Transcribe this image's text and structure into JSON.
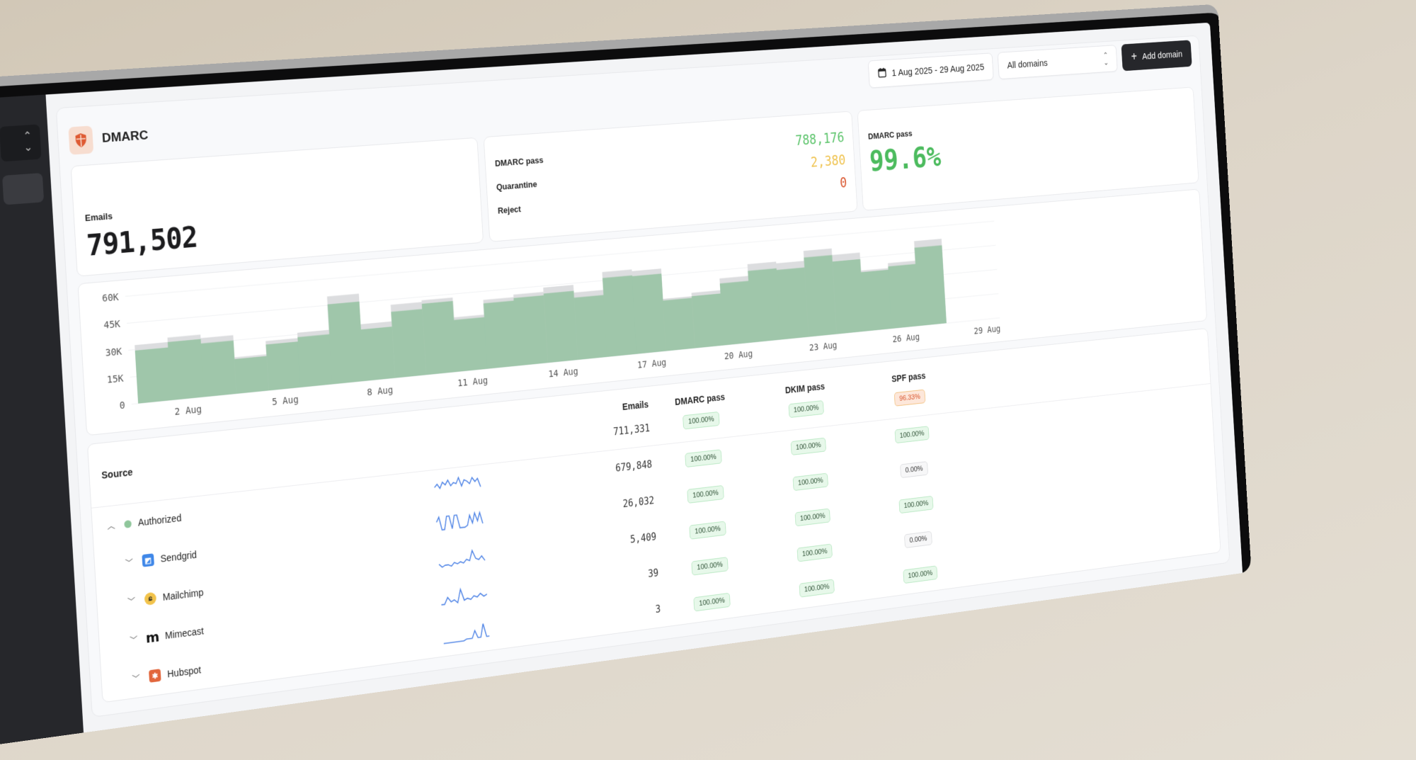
{
  "header": {
    "title": "DMARC",
    "date_range": "1 Aug 2025 - 29 Aug 2025",
    "domain_select": "All domains",
    "add_domain": "Add domain"
  },
  "stats": {
    "emails_label": "Emails",
    "emails_value": "791,502",
    "breakdown": [
      {
        "label": "DMARC pass",
        "value": "788,176",
        "color": "#5cc46b"
      },
      {
        "label": "Quarantine",
        "value": "2,380",
        "color": "#efc24d"
      },
      {
        "label": "Reject",
        "value": "0",
        "color": "#d9532b"
      }
    ],
    "pass_label": "DMARC pass",
    "pass_value": "99.6%"
  },
  "chart_data": {
    "type": "bar",
    "stacked": "overlay",
    "x": [
      "1 Aug",
      "2 Aug",
      "3 Aug",
      "4 Aug",
      "5 Aug",
      "6 Aug",
      "7 Aug",
      "8 Aug",
      "9 Aug",
      "10 Aug",
      "11 Aug",
      "12 Aug",
      "13 Aug",
      "14 Aug",
      "15 Aug",
      "16 Aug",
      "17 Aug",
      "18 Aug",
      "19 Aug",
      "20 Aug",
      "21 Aug",
      "22 Aug",
      "23 Aug",
      "24 Aug",
      "25 Aug",
      "26 Aug",
      "27 Aug"
    ],
    "series": [
      {
        "values": [
          32500,
          35000,
          33000,
          20500,
          28000,
          31000,
          50000,
          32500,
          42000,
          43000,
          31500,
          40000,
          41500,
          44000,
          39500,
          50000,
          49000,
          31000,
          33000,
          40000,
          47000,
          46000,
          52000,
          48000,
          37000,
          40000,
          52000
        ],
        "color": "#dcdddf"
      },
      {
        "values": [
          29500,
          32500,
          30000,
          19500,
          26000,
          28500,
          45500,
          29500,
          38000,
          41000,
          30000,
          38000,
          39500,
          40500,
          36500,
          46500,
          46000,
          30000,
          31000,
          37000,
          43000,
          42000,
          48000,
          44000,
          36000,
          38000,
          48000
        ],
        "color": "#9fc6aa"
      }
    ],
    "yticks": [
      "0",
      "15K",
      "30K",
      "45K",
      "60K"
    ],
    "ylim": [
      0,
      62000
    ],
    "xticks": [
      "2 Aug",
      "5 Aug",
      "8 Aug",
      "11 Aug",
      "14 Aug",
      "17 Aug",
      "20 Aug",
      "23 Aug",
      "26 Aug",
      "29 Aug"
    ],
    "grid": true
  },
  "table": {
    "columns": [
      "Source",
      "Emails",
      "DMARC pass",
      "DKIM pass",
      "SPF pass"
    ],
    "total": {
      "emails": "711,331",
      "dmarc": "100.00%",
      "dkim": "100.00%",
      "spf": "96.33%",
      "spf_status": "warn"
    },
    "rows": [
      {
        "name": "Authorized",
        "icon": "green-dot-icon",
        "expanded": true,
        "emails": "679,848",
        "dmarc": "100.00%",
        "dkim": "100.00%",
        "spf": "100.00%",
        "spf_status": "ok",
        "spark": [
          5,
          7,
          4,
          8,
          6,
          9,
          5,
          7,
          6,
          10,
          4,
          8,
          7,
          5,
          9,
          6,
          8,
          2
        ]
      },
      {
        "name": "Sendgrid",
        "icon": "sendgrid-icon",
        "emails": "26,032",
        "dmarc": "100.00%",
        "dkim": "100.00%",
        "spf": "0.00%",
        "spf_status": "zero",
        "spark": [
          6,
          9,
          1,
          1,
          9,
          9,
          1,
          9,
          9,
          1,
          1,
          1,
          2,
          8,
          3,
          9,
          4,
          9,
          2
        ]
      },
      {
        "name": "Mailchimp",
        "icon": "mailchimp-icon",
        "emails": "5,409",
        "dmarc": "100.00%",
        "dkim": "100.00%",
        "spf": "100.00%",
        "spf_status": "ok",
        "spark": [
          3,
          1,
          2,
          2,
          1,
          3,
          2,
          3,
          2,
          4,
          3,
          9,
          4,
          3,
          5,
          2
        ]
      },
      {
        "name": "Mimecast",
        "icon": "mimecast-icon",
        "emails": "39",
        "dmarc": "100.00%",
        "dkim": "100.00%",
        "spf": "0.00%",
        "spf_status": "zero",
        "spark": [
          1,
          1,
          5,
          2,
          3,
          1,
          9,
          2,
          3,
          2,
          4,
          3,
          5,
          3,
          4
        ]
      },
      {
        "name": "Hubspot",
        "icon": "hubspot-icon",
        "emails": "3",
        "dmarc": "100.00%",
        "dkim": "100.00%",
        "spf": "100.00%",
        "spf_status": "ok",
        "spark": [
          0,
          0,
          0,
          0,
          0,
          0,
          0,
          0,
          1,
          1,
          1,
          6,
          1,
          1,
          10,
          1,
          1
        ]
      }
    ]
  }
}
